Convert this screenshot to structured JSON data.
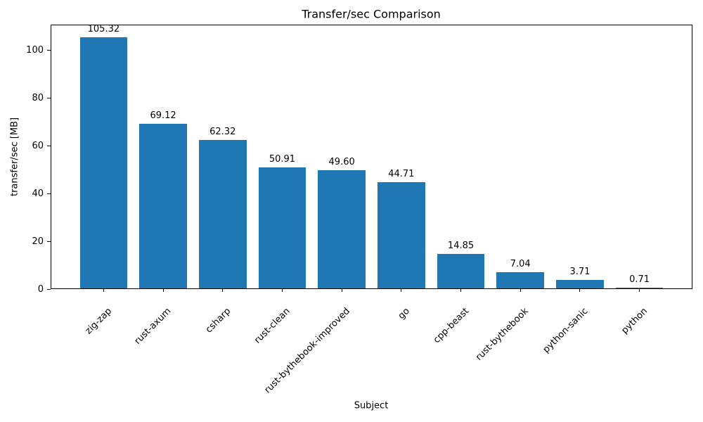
{
  "chart_data": {
    "type": "bar",
    "title": "Transfer/sec Comparison",
    "xlabel": "Subject",
    "ylabel": "transfer/sec [MB]",
    "categories": [
      "zig-zap",
      "rust-axum",
      "csharp",
      "rust-clean",
      "rust-bythebook-improved",
      "go",
      "cpp-beast",
      "rust-bythebook",
      "python-sanic",
      "python"
    ],
    "values": [
      105.32,
      69.12,
      62.32,
      50.91,
      49.6,
      44.71,
      14.85,
      7.04,
      3.71,
      0.71
    ],
    "value_labels": [
      "105.32",
      "69.12",
      "62.32",
      "50.91",
      "49.60",
      "44.71",
      "14.85",
      "7.04",
      "3.71",
      "0.71"
    ],
    "yticks": [
      0,
      20,
      40,
      60,
      80,
      100
    ],
    "ylim": [
      0,
      110.59
    ],
    "bar_color": "#1f77b4",
    "text_color": "#000000",
    "grid": false,
    "legend": null
  }
}
